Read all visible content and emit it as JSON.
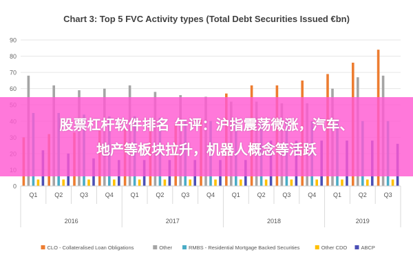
{
  "chart_data": {
    "type": "bar",
    "title": "Chart 3: Top 5 FVC Activity types (Total Debt Securities Issued €bn)",
    "ylim": [
      0,
      90
    ],
    "yticks": [
      0,
      10,
      20,
      30,
      40,
      50,
      60,
      70,
      80,
      90
    ],
    "grid": true,
    "legend_position": "bottom",
    "categories": [
      "Q1",
      "Q2",
      "Q3",
      "Q4",
      "Q1",
      "Q2",
      "Q3",
      "Q4",
      "Q1",
      "Q2",
      "Q3",
      "Q4",
      "Q1",
      "Q2",
      "Q3"
    ],
    "groups": [
      {
        "label": "2016",
        "span": 4
      },
      {
        "label": "2017",
        "span": 4
      },
      {
        "label": "2018",
        "span": 4
      },
      {
        "label": "2019",
        "span": 3
      }
    ],
    "series": [
      {
        "name": "CLO - Collateralised Loan Obligations",
        "color": "#ed7d31",
        "values": [
          30,
          32,
          33,
          34,
          35,
          36,
          38,
          41,
          57,
          62,
          62,
          65,
          69,
          76,
          84
        ]
      },
      {
        "name": "Other",
        "color": "#a5a5a5",
        "values": [
          68,
          62,
          59,
          60,
          62,
          58,
          56,
          55,
          52,
          52,
          51,
          51,
          60,
          67,
          68
        ]
      },
      {
        "name": "RMBS - Residential Mortgage Backed Securities",
        "color": "#4aacc6",
        "values": [
          45,
          45,
          44,
          43,
          43,
          42,
          41,
          40,
          40,
          40,
          40,
          40,
          40,
          40,
          40
        ]
      },
      {
        "name": "Other CDO",
        "color": "#ffc000",
        "values": [
          4,
          4,
          4,
          4,
          4,
          4,
          4,
          4,
          4,
          4,
          4,
          4,
          4,
          4,
          4
        ]
      },
      {
        "name": "ABCP",
        "color": "#4b4fb5",
        "values": [
          22,
          20,
          17,
          16,
          16,
          16,
          16,
          16,
          16,
          28,
          28,
          28,
          28,
          28,
          26
        ]
      }
    ]
  },
  "overlay": {
    "line1": "股票杠杆软件排名 午评：沪指震荡微涨，汽车、",
    "line2": "地产等板块拉升，机器人概念等活跃",
    "color": "#ff5ad2"
  }
}
